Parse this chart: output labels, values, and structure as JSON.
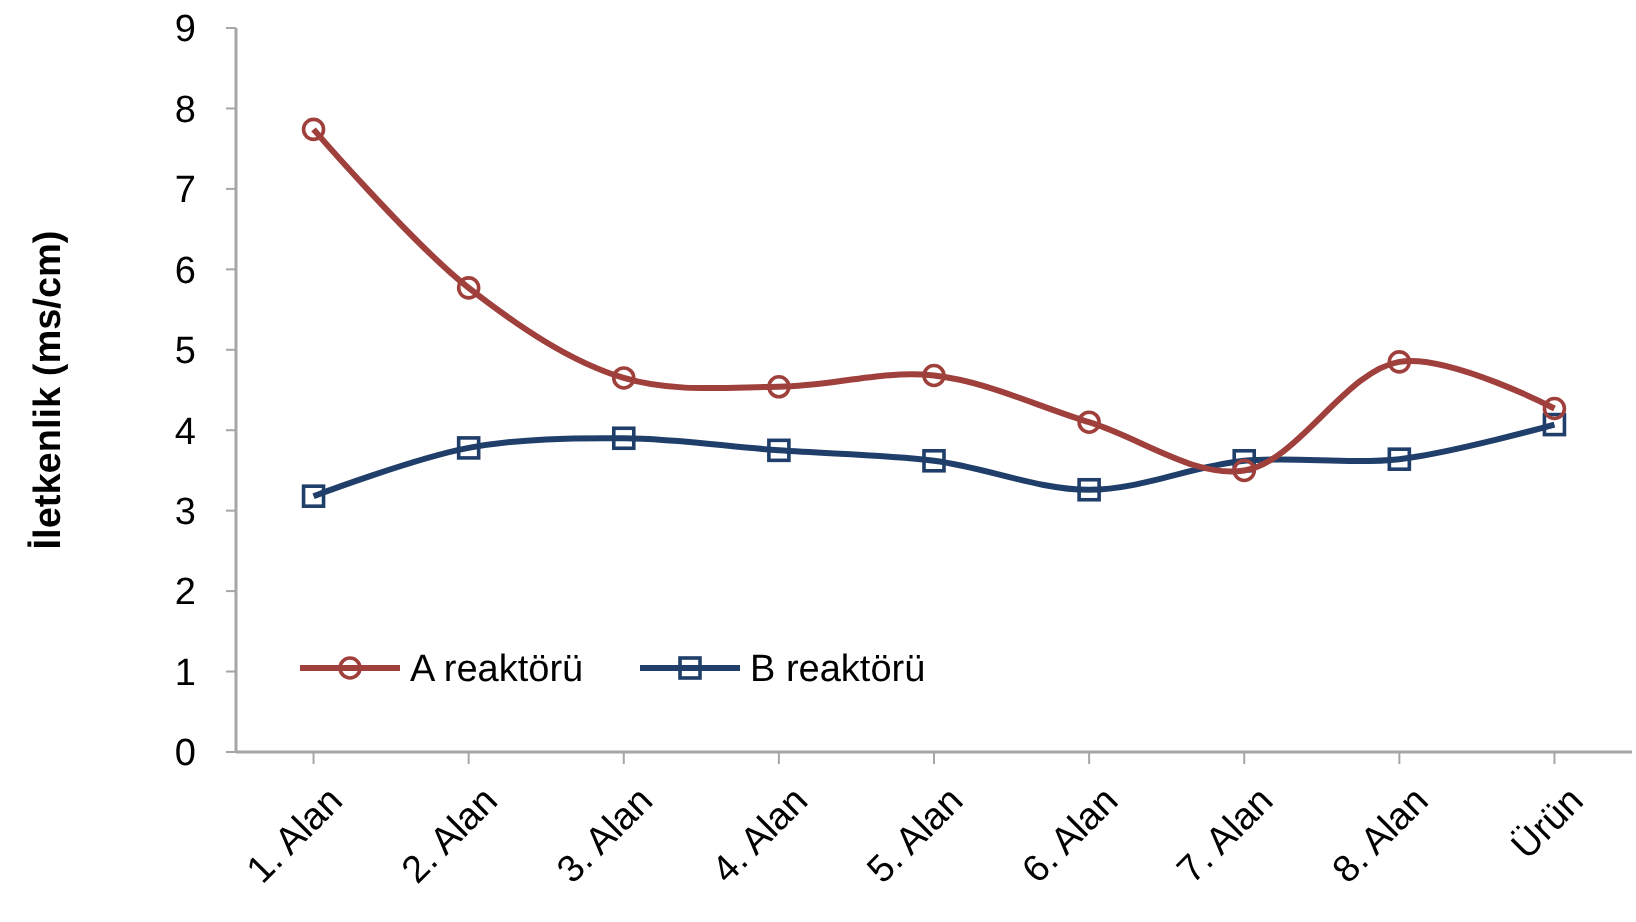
{
  "chart_data": {
    "type": "line",
    "ylabel": "İletkenlik (ms/cm)",
    "categories": [
      "1. Alan",
      "2. Alan",
      "3. Alan",
      "4. Alan",
      "5. Alan",
      "6. Alan",
      "7. Alan",
      "8. Alan",
      "Ürün"
    ],
    "series": [
      {
        "name": "A reaktörü",
        "color": "#a0403c",
        "marker": "circle",
        "values": [
          7.74,
          5.77,
          4.65,
          4.54,
          4.68,
          4.1,
          3.5,
          4.85,
          4.27
        ]
      },
      {
        "name": "B reaktörü",
        "color": "#1f3f6a",
        "marker": "square",
        "values": [
          3.18,
          3.78,
          3.9,
          3.75,
          3.62,
          3.26,
          3.62,
          3.64,
          4.07
        ]
      }
    ],
    "ylim": [
      0,
      9
    ],
    "yticks": [
      0,
      1,
      2,
      3,
      4,
      5,
      6,
      7,
      8,
      9
    ],
    "grid": false,
    "legend": "bottom left",
    "line_style": "solid"
  }
}
